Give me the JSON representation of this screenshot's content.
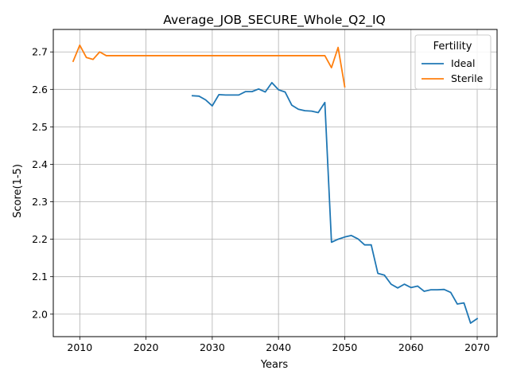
{
  "chart_data": {
    "type": "line",
    "title": "Average_JOB_SECURE_Whole_Q2_IQ",
    "xlabel": "Years",
    "ylabel": "Score(1-5)",
    "xlim": [
      2006,
      2073
    ],
    "ylim": [
      1.94,
      2.76
    ],
    "xticks": [
      2010,
      2020,
      2030,
      2040,
      2050,
      2060,
      2070
    ],
    "yticks": [
      2.0,
      2.1,
      2.2,
      2.3,
      2.4,
      2.5,
      2.6,
      2.7
    ],
    "grid": true,
    "legend": {
      "title": "Fertility",
      "position": "top-right"
    },
    "series": [
      {
        "name": "Ideal",
        "color": "#1f77b4",
        "x": [
          2027,
          2028,
          2029,
          2030,
          2031,
          2032,
          2033,
          2034,
          2035,
          2036,
          2037,
          2038,
          2039,
          2040,
          2041,
          2042,
          2043,
          2044,
          2045,
          2046,
          2047,
          2048,
          2049,
          2050,
          2051,
          2052,
          2053,
          2054,
          2055,
          2056,
          2057,
          2058,
          2059,
          2060,
          2061,
          2062,
          2063,
          2064,
          2065,
          2066,
          2067,
          2068,
          2069,
          2070
        ],
        "y": [
          2.583,
          2.582,
          2.572,
          2.556,
          2.586,
          2.585,
          2.585,
          2.585,
          2.594,
          2.594,
          2.601,
          2.593,
          2.618,
          2.599,
          2.593,
          2.558,
          2.547,
          2.543,
          2.542,
          2.538,
          2.565,
          2.192,
          2.2,
          2.206,
          2.21,
          2.201,
          2.185,
          2.185,
          2.109,
          2.104,
          2.08,
          2.07,
          2.08,
          2.071,
          2.075,
          2.061,
          2.065,
          2.065,
          2.066,
          2.058,
          2.027,
          2.03,
          1.976,
          1.988
        ]
      },
      {
        "name": "Sterile",
        "color": "#ff7f0e",
        "x": [
          2009,
          2010,
          2011,
          2012,
          2013,
          2014,
          2015,
          2016,
          2017,
          2018,
          2019,
          2020,
          2021,
          2022,
          2023,
          2024,
          2025,
          2026,
          2027,
          2028,
          2029,
          2030,
          2031,
          2032,
          2033,
          2034,
          2035,
          2036,
          2037,
          2038,
          2039,
          2040,
          2041,
          2042,
          2043,
          2044,
          2045,
          2046,
          2047,
          2048,
          2049,
          2050
        ],
        "y": [
          2.675,
          2.718,
          2.685,
          2.68,
          2.7,
          2.69,
          2.69,
          2.69,
          2.69,
          2.69,
          2.69,
          2.69,
          2.69,
          2.69,
          2.69,
          2.69,
          2.69,
          2.69,
          2.69,
          2.69,
          2.69,
          2.69,
          2.69,
          2.69,
          2.69,
          2.69,
          2.69,
          2.69,
          2.69,
          2.69,
          2.69,
          2.69,
          2.69,
          2.69,
          2.69,
          2.69,
          2.69,
          2.69,
          2.69,
          2.658,
          2.712,
          2.607
        ]
      }
    ]
  }
}
